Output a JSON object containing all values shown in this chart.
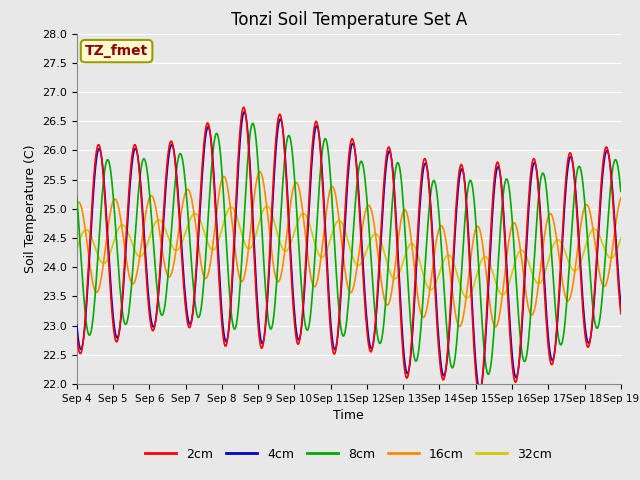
{
  "title": "Tonzi Soil Temperature Set A",
  "xlabel": "Time",
  "ylabel": "Soil Temperature (C)",
  "ylim": [
    22.0,
    28.0
  ],
  "yticks": [
    22.0,
    22.5,
    23.0,
    23.5,
    24.0,
    24.5,
    25.0,
    25.5,
    26.0,
    26.5,
    27.0,
    27.5,
    28.0
  ],
  "xtick_labels": [
    "Sep 4",
    "Sep 5",
    "Sep 6",
    "Sep 7",
    "Sep 8",
    "Sep 9",
    "Sep 10",
    "Sep 11",
    "Sep 12",
    "Sep 13",
    "Sep 14",
    "Sep 15",
    "Sep 16",
    "Sep 17",
    "Sep 18",
    "Sep 19"
  ],
  "annotation_text": "TZ_fmet",
  "annotation_color": "#8B0000",
  "annotation_bg": "#FFFACD",
  "annotation_border": "#999900",
  "colors": {
    "2cm": "#FF0000",
    "4cm": "#0000CC",
    "8cm": "#00AA00",
    "16cm": "#FF8800",
    "32cm": "#CCCC00"
  },
  "background_color": "#E8E8E8",
  "plot_bg_color": "#E8E8E8",
  "grid_color": "#FFFFFF",
  "title_fontsize": 12,
  "legend_fontsize": 9
}
